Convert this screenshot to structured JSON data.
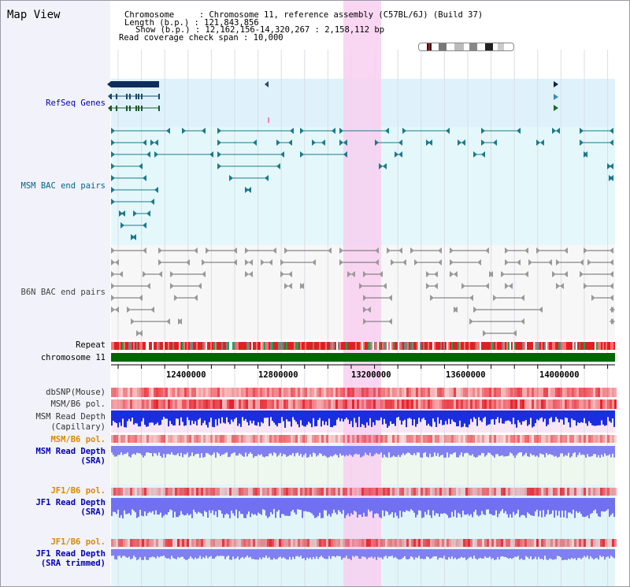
{
  "view": {
    "title": "Map View",
    "chromosome_line": "Chromosome     : Chromosome 11, reference assembly (C57BL/6J) (Build 37)",
    "length_line": "Length (b.p.) : 121,843,856",
    "show_line": "Show (b.p.) : 12,162,156-14,320,267 : 2,158,112 bp",
    "coverage_line": "Read coverage check span : 10,000"
  },
  "tracks": {
    "refseq": "RefSeq Genes",
    "msm_bac": "MSM BAC end pairs",
    "b6n_bac": "B6N BAC end pairs",
    "repeat": "Repeat",
    "chromosome": "chromosome 11",
    "dbsnp": "dbSNP(Mouse)",
    "msm_b6_pol_1": "MSM/B6 pol.",
    "msm_read_depth_cap_1": "MSM Read Depth",
    "msm_read_depth_cap_2": "(Capillary)",
    "msm_b6_pol_2": "MSM/B6 pol.",
    "msm_read_depth_sra_1": "MSM Read Depth",
    "msm_read_depth_sra_2": "(SRA)",
    "jf1_b6_pol_1": "JF1/B6 pol.",
    "jf1_read_depth_sra_1": "JF1 Read Depth",
    "jf1_read_depth_sra_2": "(SRA)",
    "jf1_b6_pol_2": "JF1/B6 pol.",
    "jf1_read_depth_trim_1": "JF1 Read Depth",
    "jf1_read_depth_trim_2": "(SRA trimmed)"
  },
  "axis": {
    "ticks": [
      "12400000",
      "12800000",
      "13200000",
      "13600000",
      "14000000"
    ]
  },
  "colors": {
    "label_blue": "#0000b0",
    "label_teal": "#006688",
    "label_orange": "#dd8800",
    "highlight": "#f8d0f0",
    "track_bg": "#d8f0fa",
    "chromosome_green": "#006600"
  }
}
